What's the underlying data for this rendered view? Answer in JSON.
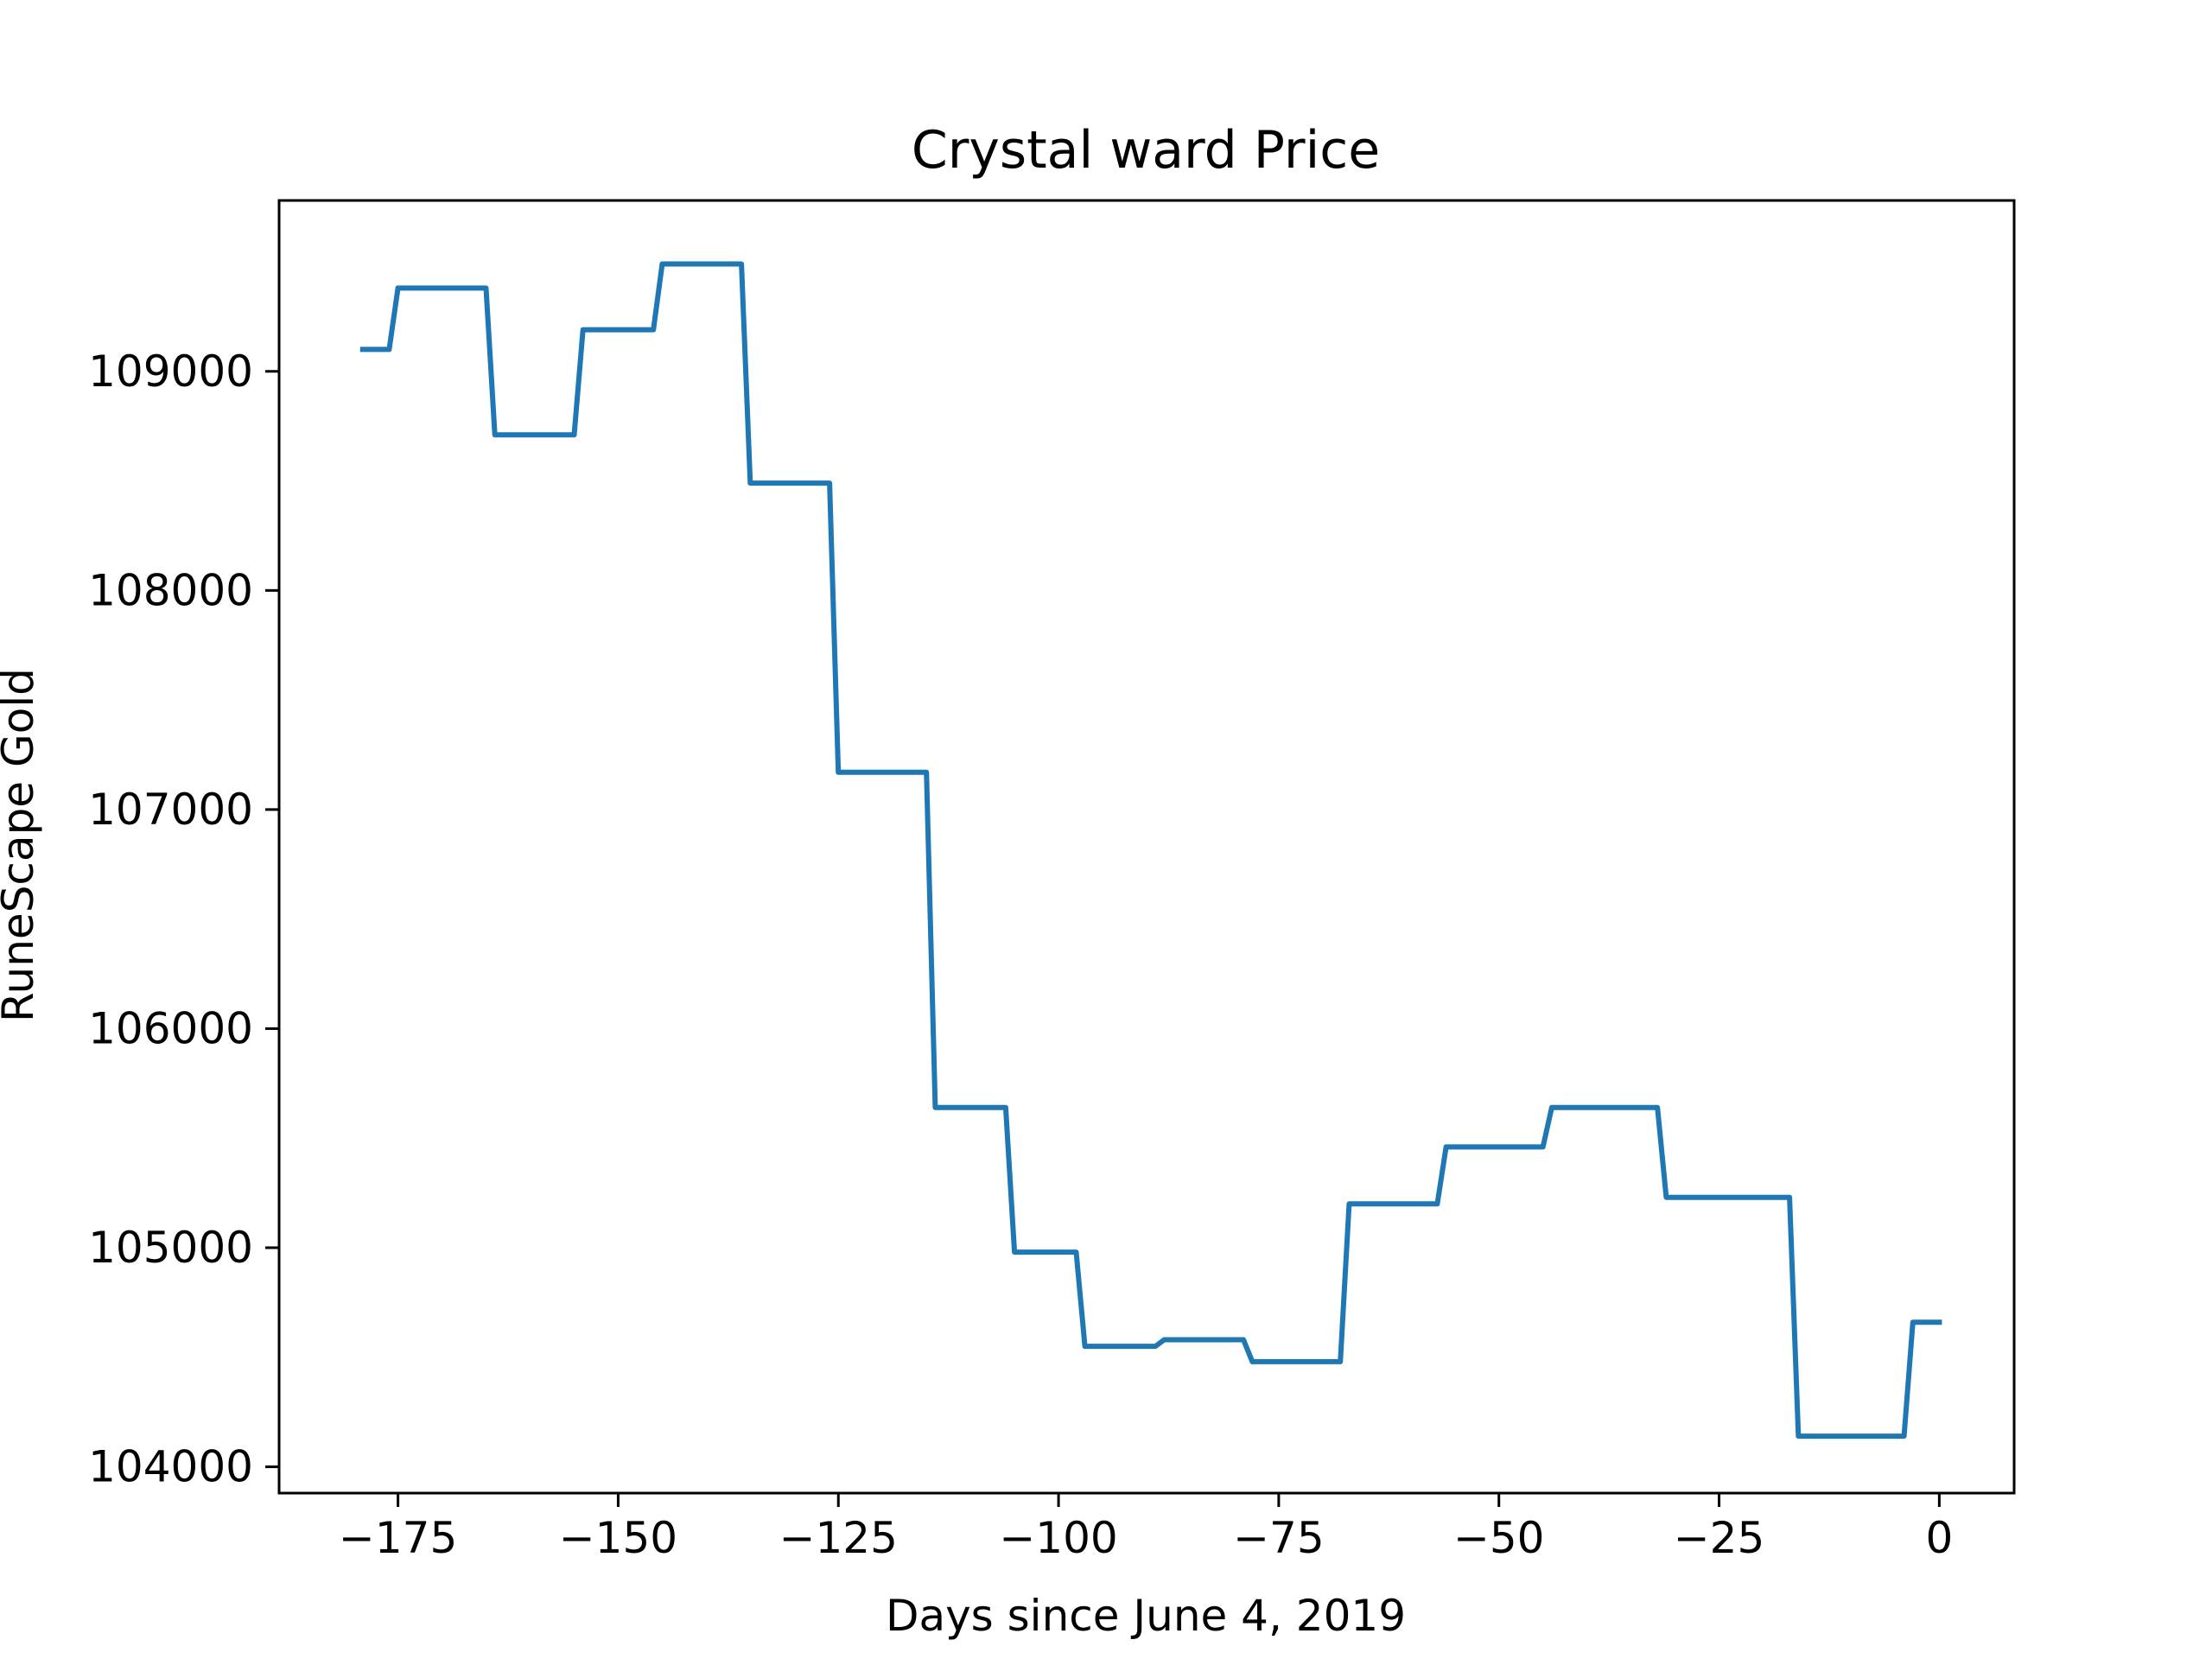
{
  "chart_data": {
    "type": "line",
    "title": "Crystal ward Price",
    "xlabel": "Days since June 4, 2019",
    "ylabel": "RuneScape Gold",
    "xlim": [
      -188.5,
      8.5
    ],
    "ylim": [
      103880,
      109780
    ],
    "x_ticks": [
      -175,
      -150,
      -125,
      -100,
      -75,
      -50,
      -25,
      0
    ],
    "x_tick_labels": [
      "−175",
      "−150",
      "−125",
      "−100",
      "−75",
      "−50",
      "−25",
      "0"
    ],
    "y_ticks": [
      104000,
      105000,
      106000,
      107000,
      108000,
      109000
    ],
    "y_tick_labels": [
      "104000",
      "105000",
      "106000",
      "107000",
      "108000",
      "109000"
    ],
    "grid": false,
    "legend": "none",
    "series": [
      {
        "color": "#1f77b4",
        "x": [
          -179,
          -176,
          -175,
          -165,
          -164,
          -155,
          -154,
          -146,
          -145,
          -136,
          -135,
          -126,
          -125,
          -115,
          -114,
          -106,
          -105,
          -98,
          -97,
          -89,
          -88,
          -79,
          -78,
          -68,
          -67,
          -57,
          -56,
          -45,
          -44,
          -32,
          -31,
          -17,
          -16,
          -4,
          -3,
          0
        ],
        "y": [
          109100,
          109100,
          109380,
          109380,
          108710,
          108710,
          109190,
          109190,
          109490,
          109490,
          108490,
          108490,
          107170,
          107170,
          105640,
          105640,
          104980,
          104980,
          104550,
          104550,
          104580,
          104580,
          104480,
          104480,
          105200,
          105200,
          105460,
          105460,
          105640,
          105640,
          105230,
          105230,
          104140,
          104140,
          104660,
          104660
        ]
      }
    ]
  }
}
